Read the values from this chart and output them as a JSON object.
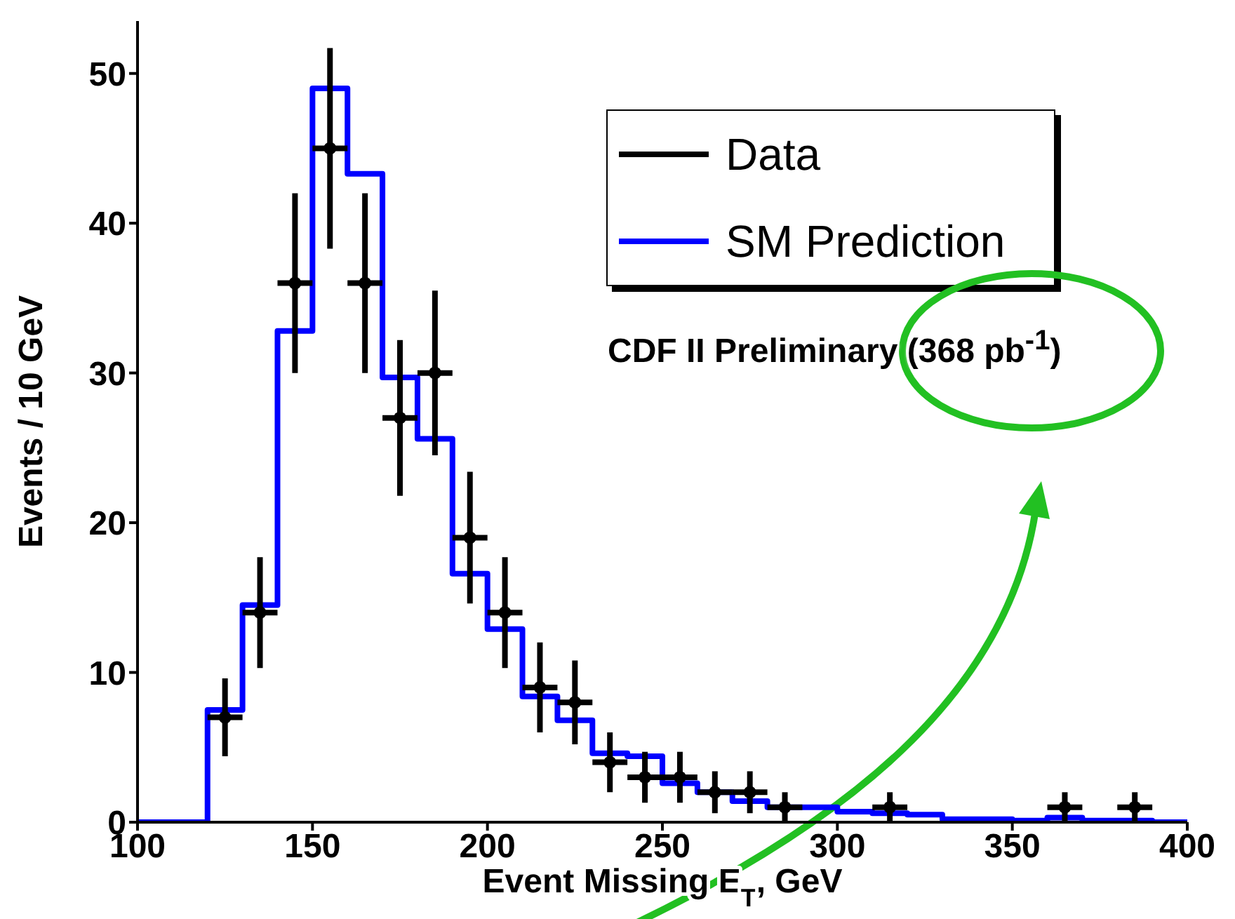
{
  "chart_data": {
    "type": "histogram",
    "xlabel": "Event Missing E$_{T}$, GeV",
    "ylabel": "Events / 10 GeV",
    "annotations": [
      "CDF II Preliminary (368 pb$^{-1}$)"
    ],
    "bins": [
      100,
      110,
      120,
      130,
      140,
      150,
      160,
      170,
      180,
      190,
      200,
      210,
      220,
      230,
      240,
      250,
      260,
      270,
      280,
      290,
      300,
      310,
      320,
      330,
      340,
      350,
      360,
      370,
      380,
      390,
      400
    ],
    "series": [
      {
        "name": "Data",
        "type": "scatter",
        "color": "#000000",
        "x": [
          125,
          135,
          145,
          155,
          165,
          175,
          185,
          195,
          205,
          215,
          225,
          235,
          245,
          255,
          265,
          275,
          285,
          315,
          365,
          385
        ],
        "values": [
          7,
          14,
          36,
          45,
          36,
          27,
          30,
          19,
          14,
          9,
          8,
          4,
          3,
          3,
          2,
          2,
          1,
          1,
          1,
          1
        ],
        "errors": [
          2.6,
          3.7,
          6,
          6.7,
          6,
          5.2,
          5.5,
          4.4,
          3.7,
          3,
          2.8,
          2,
          1.7,
          1.7,
          1.4,
          1.4,
          1,
          1,
          1,
          1
        ],
        "xerrors": [
          5,
          5,
          5,
          5,
          5,
          5,
          5,
          5,
          5,
          5,
          5,
          5,
          5,
          5,
          5,
          5,
          5,
          5,
          5,
          5
        ]
      },
      {
        "name": "SM Prediction",
        "color": "#0000ff",
        "values": [
          0,
          0,
          7.5,
          14.5,
          32.8,
          49,
          43.3,
          29.7,
          25.6,
          16.6,
          12.9,
          8.4,
          6.8,
          4.6,
          4.4,
          2.6,
          2,
          1.4,
          1,
          1,
          0.7,
          0.6,
          0.5,
          0.2,
          0.2,
          0.1,
          0.3,
          0.1,
          0.1,
          0
        ]
      }
    ],
    "xlim": [
      100,
      400
    ],
    "ylim": [
      0,
      53.5
    ],
    "xticks": [
      100,
      150,
      200,
      250,
      300,
      350,
      400
    ],
    "yticks": [
      0,
      10,
      20,
      30,
      40,
      50
    ],
    "grid": false,
    "legend": "top right",
    "marker": "circle"
  }
}
